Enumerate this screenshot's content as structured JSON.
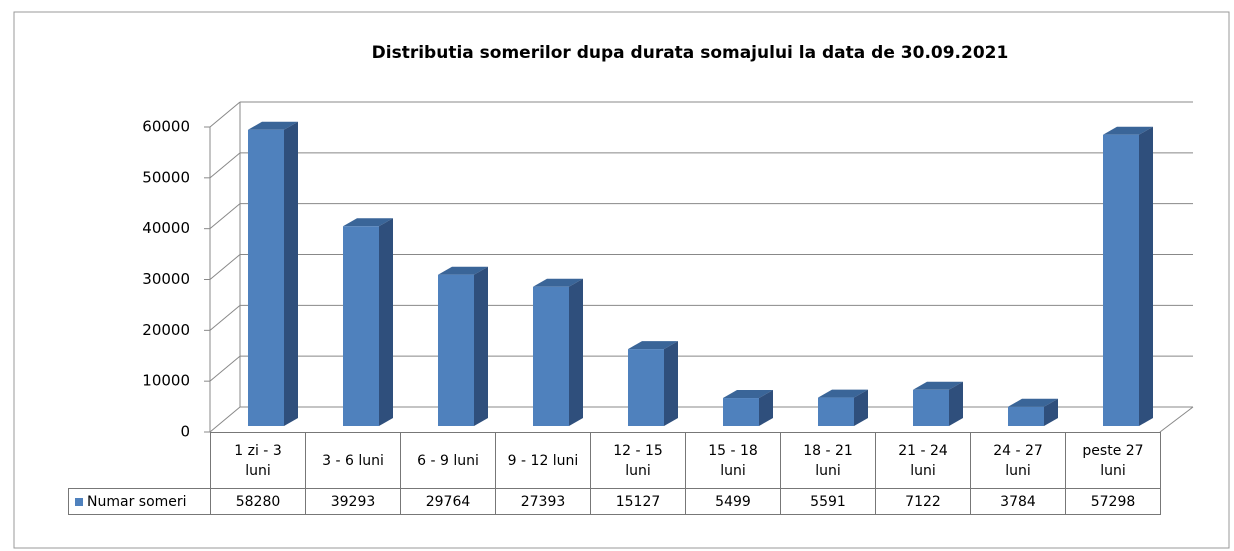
{
  "chart_data": {
    "type": "bar3d",
    "title": "Distributia somerilor dupa durata somajului la data de 30.09.2021",
    "categories": [
      "1 zi - 3 luni",
      "3 - 6 luni",
      "6 - 9 luni",
      "9 - 12 luni",
      "12 - 15 luni",
      "15 - 18 luni",
      "18 - 21 luni",
      "21 - 24 luni",
      "24 - 27 luni",
      "peste 27 luni"
    ],
    "series": [
      {
        "name": "Numar someri",
        "color": "#4f81bd",
        "values": [
          58280,
          39293,
          29764,
          27393,
          15127,
          5499,
          5591,
          7122,
          3784,
          57298
        ]
      }
    ],
    "ylim": [
      0,
      60000
    ],
    "yticks": [
      0,
      10000,
      20000,
      30000,
      40000,
      50000,
      60000
    ],
    "grid": true
  }
}
